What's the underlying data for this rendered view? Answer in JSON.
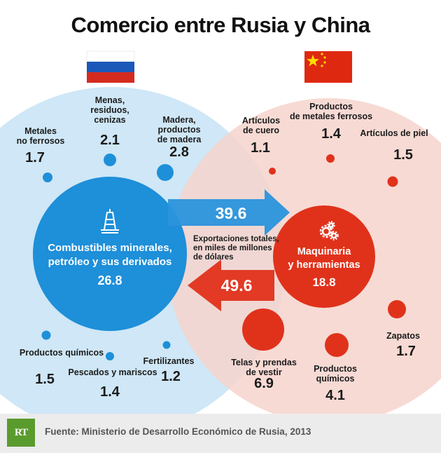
{
  "title": "Comercio entre Rusia y China",
  "colors": {
    "russia": "#1e8fd9",
    "russia_light": "#cfe7f6",
    "china": "#e0321b",
    "china_light": "#f6d3cc",
    "text": "#1b1b1b"
  },
  "russia": {
    "center": {
      "label": "Combustibles minerales,\npetróleo y sus derivados",
      "value": "26.8",
      "icon": "oil-rig-icon"
    },
    "items": [
      {
        "id": "metales-no-ferrosos",
        "label": "Metales\nno ferrosos",
        "value": "1.7"
      },
      {
        "id": "menas",
        "label": "Menas,\nresiduos,\ncenizas",
        "value": "2.1"
      },
      {
        "id": "madera",
        "label": "Madera,\nproductos\nde madera",
        "value": "2.8"
      },
      {
        "id": "productos-quimicos",
        "label": "Productos químicos",
        "value": "1.5"
      },
      {
        "id": "pescados",
        "label": "Pescados y mariscos",
        "value": "1.4"
      },
      {
        "id": "fertilizantes",
        "label": "Fertilizantes",
        "value": "1.2"
      }
    ]
  },
  "china": {
    "center": {
      "label": "Maquinaria\ny herramientas",
      "value": "18.8",
      "icon": "gears-icon"
    },
    "items": [
      {
        "id": "articulos-cuero",
        "label": "Artículos\nde cuero",
        "value": "1.1"
      },
      {
        "id": "metales-ferrosos",
        "label": "Productos\nde metales ferrosos",
        "value": "1.4"
      },
      {
        "id": "articulos-piel",
        "label": "Artículos de piel",
        "value": "1.5"
      },
      {
        "id": "zapatos",
        "label": "Zapatos",
        "value": "1.7"
      },
      {
        "id": "telas",
        "label": "Telas y prendas\nde vestir",
        "value": "6.9"
      },
      {
        "id": "productos-quimicos-cn",
        "label": "Productos\nquímicos",
        "value": "4.1"
      }
    ]
  },
  "flows": {
    "russia_to_china": "39.6",
    "china_to_russia": "49.6",
    "explanation": "Exportaciones totales,\nen miles de millones\nde dólares"
  },
  "footer": {
    "logo": "RT",
    "source": "Fuente: Ministerio de Desarrollo Económico de Rusia, 2013"
  }
}
